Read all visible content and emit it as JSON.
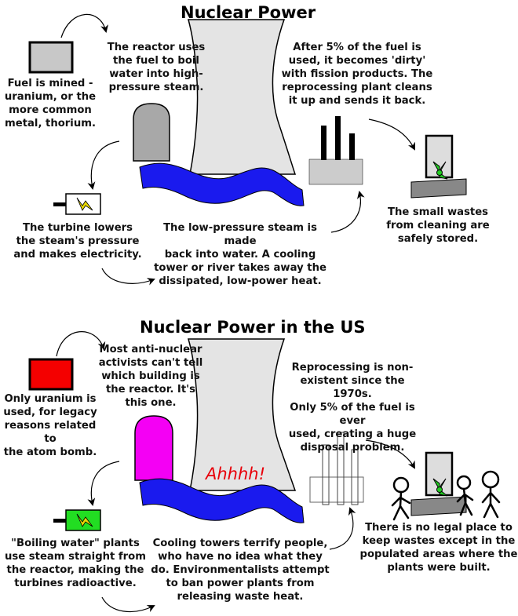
{
  "top": {
    "title": "Nuclear Power",
    "fuel": "Fuel is mined -\nuranium, or the\nmore common\nmetal, thorium.",
    "reactor": "The reactor uses\nthe fuel to boil\nwater into high-\npressure steam.",
    "reprocessing": "After 5% of the fuel is\nused, it becomes 'dirty'\nwith fission products. The\nreprocessing plant cleans\nit up and sends it back.",
    "turbine": "The turbine lowers\nthe steam's pressure\nand makes electricity.",
    "cooling": "The low-pressure steam is made\nback into water. A cooling\ntower or river takes away the\ndissipated, low-power heat.",
    "wastes": "The small wastes\nfrom cleaning are\nsafely stored."
  },
  "bottom": {
    "title": "Nuclear Power in the US",
    "fuel": "Only uranium is\nused, for legacy\nreasons related to\nthe atom bomb.",
    "reactor": "Most anti-nuclear\nactivists can't tell\nwhich building is\nthe reactor. It's\nthis one.",
    "reprocessing": "Reprocessing is non-\nexistent since the 1970s.\nOnly 5% of the fuel is ever\nused, creating a huge\ndisposal problem.",
    "turbine": "\"Boiling water\" plants\nuse steam straight from\nthe reactor, making the\nturbines radioactive.",
    "cooling": "Cooling towers terrify people,\nwho have no idea what they\ndo. Environmentalists attempt\nto ban power plants from\nreleasing waste heat.",
    "wastes": "There is no legal place to\nkeep wastes except in the\npopulated areas where the\nplants were built.",
    "exclamation": "Ahhhh!"
  },
  "colors": {
    "fuel_top": "#c8c8c8",
    "fuel_bottom": "#f40000",
    "reactor_top": "#a8a8a8",
    "reactor_bottom": "#f400f4",
    "tower": "#e4e4e4",
    "water": "#1a1aee",
    "turbine_top": "#ffffff",
    "turbine_bottom": "#22dd22",
    "waste_leaf": "#22cc22",
    "exclamation": "#e8000a"
  }
}
